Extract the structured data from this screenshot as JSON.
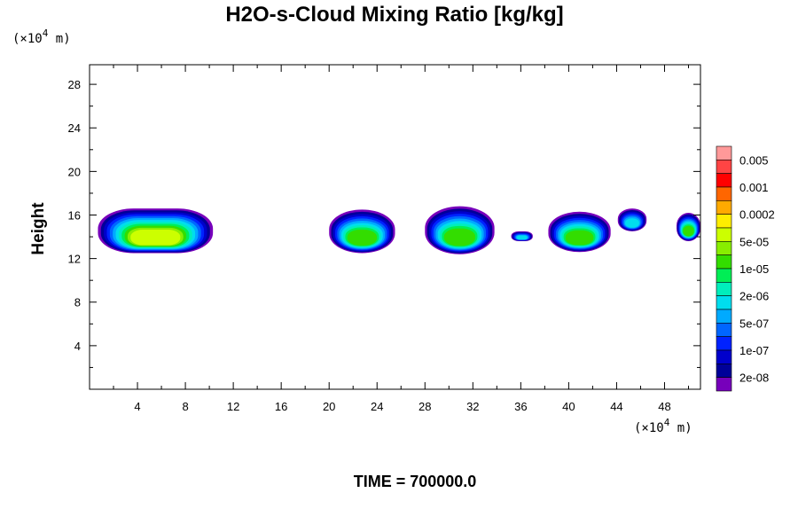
{
  "chart_data": {
    "type": "heatmap",
    "title": "H2O-s-Cloud Mixing Ratio [kg/kg]",
    "xlabel": "",
    "ylabel": "Height",
    "x_unit": {
      "prefix": "(×10",
      "exp": "4",
      "suffix": " m)"
    },
    "y_unit": {
      "prefix": "(×10",
      "exp": "4",
      "suffix": " m)"
    },
    "xlim": [
      0,
      51
    ],
    "ylim": [
      0,
      29.8
    ],
    "x_ticks": [
      4,
      8,
      12,
      16,
      20,
      24,
      28,
      32,
      36,
      40,
      44,
      48
    ],
    "y_ticks": [
      4,
      8,
      12,
      16,
      20,
      24,
      28
    ],
    "colorbar": {
      "labels": [
        "0.005",
        "0.001",
        "0.0002",
        "5e-05",
        "1e-05",
        "2e-06",
        "5e-07",
        "1e-07",
        "2e-08"
      ],
      "colors": [
        "#ff9999",
        "#ff4444",
        "#ff0000",
        "#ff6600",
        "#ffaa00",
        "#ffee00",
        "#ccff00",
        "#88ee00",
        "#33dd00",
        "#00ee55",
        "#00eebb",
        "#00ddee",
        "#00aaff",
        "#0066ff",
        "#0022ff",
        "#0000cc",
        "#000099",
        "#7700bb"
      ]
    },
    "cloud_regions": [
      {
        "x_range": [
          0.7,
          10.3
        ],
        "y_range": [
          12.5,
          16.6
        ],
        "peak": "5e-05"
      },
      {
        "x_range": [
          20.0,
          25.5
        ],
        "y_range": [
          12.5,
          16.5
        ],
        "peak": "1e-05"
      },
      {
        "x_range": [
          28.0,
          33.8
        ],
        "y_range": [
          12.4,
          16.8
        ],
        "peak": "1e-05"
      },
      {
        "x_range": [
          35.2,
          37.0
        ],
        "y_range": [
          13.6,
          14.5
        ],
        "peak": "5e-07"
      },
      {
        "x_range": [
          38.3,
          43.5
        ],
        "y_range": [
          12.6,
          16.3
        ],
        "peak": "1e-05"
      },
      {
        "x_range": [
          44.1,
          46.5
        ],
        "y_range": [
          14.5,
          16.6
        ],
        "peak": "5e-07"
      },
      {
        "x_range": [
          49.0,
          51.0
        ],
        "y_range": [
          13.6,
          16.2
        ],
        "peak": "1e-05"
      }
    ],
    "footer": "TIME = 700000.0"
  }
}
